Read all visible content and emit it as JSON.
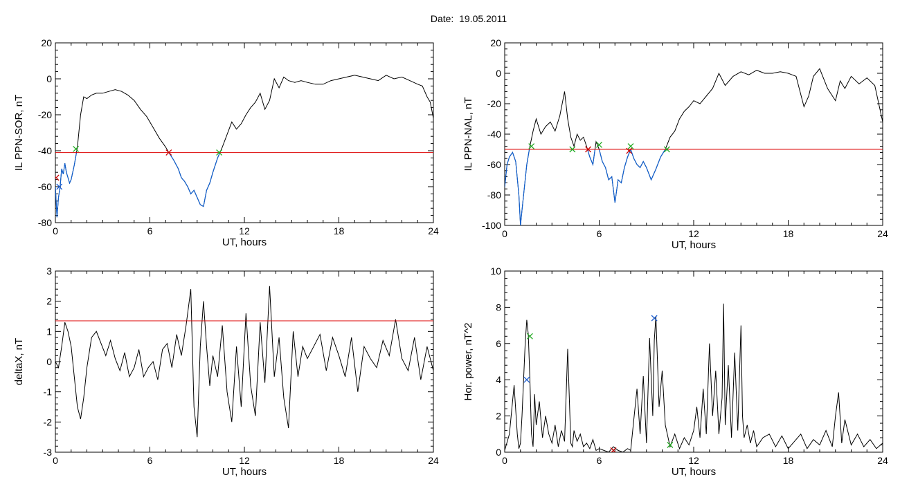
{
  "page_title": "Date:  19.05.2011",
  "chart_data": [
    {
      "id": "sor",
      "type": "line",
      "title": "",
      "xlabel": "UT, hours",
      "ylabel": "IL PPN-SOR, nT",
      "xlim": [
        0,
        24
      ],
      "ylim": [
        -80,
        20
      ],
      "xticks": [
        0,
        6,
        12,
        18,
        24
      ],
      "yticks": [
        -80,
        -60,
        -40,
        -20,
        0,
        20
      ],
      "grid": false,
      "threshold": -41,
      "threshold_color": "#dd0000",
      "line_color": "#000000",
      "below_color": "#1060d0",
      "x": [
        0,
        0.1,
        0.2,
        0.3,
        0.4,
        0.5,
        0.6,
        0.7,
        0.9,
        1.0,
        1.2,
        1.4,
        1.6,
        1.8,
        2.0,
        2.3,
        2.6,
        3.0,
        3.4,
        3.8,
        4.2,
        4.6,
        5.0,
        5.4,
        5.8,
        6.2,
        6.6,
        7.0,
        7.2,
        7.5,
        7.8,
        8.0,
        8.2,
        8.4,
        8.6,
        8.8,
        9.0,
        9.2,
        9.4,
        9.6,
        9.8,
        10.0,
        10.3,
        10.6,
        10.9,
        11.2,
        11.5,
        11.8,
        12.1,
        12.4,
        12.7,
        13.0,
        13.3,
        13.6,
        13.9,
        14.2,
        14.5,
        14.8,
        15.2,
        15.6,
        16.0,
        16.5,
        17.0,
        17.5,
        18.0,
        18.5,
        19.0,
        19.5,
        20.0,
        20.5,
        21.0,
        21.5,
        22.0,
        22.5,
        23.0,
        23.3,
        23.6,
        23.8,
        24.0
      ],
      "values": [
        -60,
        -77,
        -66,
        -60,
        -50,
        -53,
        -47,
        -52,
        -58,
        -56,
        -48,
        -38,
        -20,
        -10,
        -11,
        -9,
        -8,
        -8,
        -7,
        -6,
        -7,
        -9,
        -12,
        -17,
        -21,
        -27,
        -33,
        -38,
        -41,
        -45,
        -50,
        -55,
        -57,
        -60,
        -64,
        -62,
        -66,
        -70,
        -71,
        -62,
        -58,
        -52,
        -44,
        -38,
        -31,
        -24,
        -28,
        -25,
        -20,
        -16,
        -13,
        -8,
        -17,
        -12,
        0,
        -5,
        1,
        -1,
        -2,
        -1,
        -2,
        -3,
        -3,
        -1,
        0,
        1,
        2,
        1,
        0,
        -1,
        2,
        0,
        1,
        -1,
        -3,
        -4,
        -10,
        -13,
        -22
      ],
      "markers": [
        {
          "x": 1.3,
          "y": -39,
          "color": "#22aa22"
        },
        {
          "x": 7.2,
          "y": -41,
          "color": "#cc0000"
        },
        {
          "x": 10.4,
          "y": -41,
          "color": "#22aa22"
        },
        {
          "x": 0.05,
          "y": -55,
          "color": "#cc0000"
        },
        {
          "x": 0.25,
          "y": -60,
          "color": "#2060d0"
        }
      ]
    },
    {
      "id": "nal",
      "type": "line",
      "title": "",
      "xlabel": "UT, hours",
      "ylabel": "IL PPN-NAL, nT",
      "xlim": [
        0,
        24
      ],
      "ylim": [
        -100,
        20
      ],
      "xticks": [
        0,
        6,
        12,
        18,
        24
      ],
      "yticks": [
        -100,
        -80,
        -60,
        -40,
        -20,
        0,
        20
      ],
      "grid": false,
      "threshold": -50,
      "threshold_color": "#dd0000",
      "line_color": "#000000",
      "below_color": "#1060d0",
      "x": [
        0,
        0.15,
        0.3,
        0.5,
        0.7,
        0.9,
        1.0,
        1.1,
        1.2,
        1.4,
        1.6,
        1.8,
        2.0,
        2.3,
        2.6,
        2.9,
        3.2,
        3.5,
        3.8,
        4.0,
        4.2,
        4.4,
        4.6,
        4.8,
        5.0,
        5.2,
        5.4,
        5.6,
        5.8,
        6.0,
        6.2,
        6.4,
        6.6,
        6.8,
        7.0,
        7.2,
        7.4,
        7.6,
        7.8,
        8.0,
        8.2,
        8.4,
        8.6,
        8.8,
        9.0,
        9.3,
        9.6,
        9.9,
        10.2,
        10.5,
        10.8,
        11.1,
        11.4,
        11.7,
        12.0,
        12.4,
        12.8,
        13.2,
        13.6,
        14.0,
        14.5,
        15.0,
        15.5,
        16.0,
        16.5,
        17.0,
        17.5,
        18.0,
        18.5,
        19.0,
        19.3,
        19.6,
        20.0,
        20.5,
        21.0,
        21.3,
        21.6,
        22.0,
        22.5,
        23.0,
        23.5,
        24.0
      ],
      "values": [
        -75,
        -60,
        -55,
        -52,
        -58,
        -80,
        -100,
        -90,
        -80,
        -60,
        -48,
        -38,
        -30,
        -40,
        -35,
        -32,
        -38,
        -28,
        -12,
        -30,
        -42,
        -48,
        -40,
        -44,
        -42,
        -48,
        -55,
        -60,
        -45,
        -50,
        -58,
        -62,
        -70,
        -68,
        -85,
        -70,
        -72,
        -62,
        -55,
        -50,
        -56,
        -60,
        -62,
        -58,
        -62,
        -70,
        -63,
        -55,
        -50,
        -42,
        -38,
        -30,
        -25,
        -22,
        -18,
        -20,
        -15,
        -10,
        0,
        -8,
        -2,
        1,
        -1,
        2,
        0,
        0,
        1,
        0,
        -2,
        -22,
        -15,
        -2,
        3,
        -10,
        -18,
        -5,
        -10,
        -2,
        -7,
        -3,
        -8,
        -32
      ],
      "markers": [
        {
          "x": 1.7,
          "y": -48,
          "color": "#22aa22"
        },
        {
          "x": 4.3,
          "y": -50,
          "color": "#22aa22"
        },
        {
          "x": 5.3,
          "y": -50,
          "color": "#cc0000"
        },
        {
          "x": 6.0,
          "y": -47,
          "color": "#22aa22"
        },
        {
          "x": 7.9,
          "y": -51,
          "color": "#cc0000"
        },
        {
          "x": 8.0,
          "y": -48,
          "color": "#22aa22"
        },
        {
          "x": 10.3,
          "y": -50,
          "color": "#22aa22"
        }
      ]
    },
    {
      "id": "deltax",
      "type": "line",
      "title": "",
      "xlabel": "UT, hours",
      "ylabel": "deltaX, nT",
      "xlim": [
        0,
        24
      ],
      "ylim": [
        -3,
        3
      ],
      "xticks": [
        0,
        6,
        12,
        18,
        24
      ],
      "yticks": [
        -3,
        -2,
        -1,
        0,
        1,
        2,
        3
      ],
      "grid": false,
      "threshold": 1.35,
      "threshold_color": "#dd0000",
      "line_color": "#000000",
      "x": [
        0,
        0.2,
        0.4,
        0.6,
        0.8,
        1.0,
        1.2,
        1.4,
        1.6,
        1.8,
        2.0,
        2.3,
        2.6,
        2.9,
        3.2,
        3.5,
        3.8,
        4.1,
        4.4,
        4.7,
        5.0,
        5.3,
        5.6,
        5.9,
        6.2,
        6.5,
        6.8,
        7.1,
        7.4,
        7.7,
        8.0,
        8.3,
        8.6,
        8.8,
        9.0,
        9.2,
        9.4,
        9.6,
        9.8,
        10.0,
        10.3,
        10.6,
        10.9,
        11.2,
        11.5,
        11.8,
        12.1,
        12.4,
        12.7,
        13.0,
        13.3,
        13.6,
        13.9,
        14.2,
        14.5,
        14.8,
        15.1,
        15.4,
        15.7,
        16.0,
        16.4,
        16.8,
        17.2,
        17.6,
        18.0,
        18.4,
        18.8,
        19.2,
        19.6,
        20.0,
        20.4,
        20.8,
        21.2,
        21.6,
        22.0,
        22.4,
        22.8,
        23.2,
        23.6,
        24.0
      ],
      "values": [
        0,
        -0.2,
        0.5,
        1.3,
        1.0,
        0.5,
        -0.5,
        -1.5,
        -1.9,
        -1.2,
        -0.2,
        0.8,
        1.0,
        0.6,
        0.2,
        0.7,
        0.1,
        -0.3,
        0.3,
        -0.5,
        -0.2,
        0.4,
        -0.5,
        -0.2,
        0.0,
        -0.6,
        0.4,
        0.6,
        -0.2,
        0.9,
        0.2,
        1.2,
        2.4,
        -1.5,
        -2.5,
        0.5,
        2.0,
        0.5,
        -0.8,
        0.2,
        -0.5,
        1.2,
        -1.0,
        -2.0,
        0.5,
        -1.5,
        1.6,
        -0.8,
        -1.8,
        1.3,
        -0.7,
        2.5,
        -0.5,
        0.8,
        -1.2,
        -2.2,
        1.0,
        -0.5,
        0.5,
        0.1,
        0.5,
        0.9,
        -0.3,
        0.8,
        0.2,
        -0.5,
        0.8,
        -1.0,
        0.5,
        0.1,
        -0.2,
        0.7,
        0.2,
        1.4,
        0.1,
        -0.3,
        0.8,
        -0.6,
        0.5,
        -0.3
      ],
      "markers": []
    },
    {
      "id": "power",
      "type": "line",
      "title": "",
      "xlabel": "UT, hours",
      "ylabel": "Hor. power, nT^2",
      "xlim": [
        0,
        24
      ],
      "ylim": [
        0,
        10
      ],
      "xticks": [
        0,
        6,
        12,
        18,
        24
      ],
      "yticks": [
        0,
        2,
        4,
        6,
        8,
        10
      ],
      "grid": false,
      "threshold": null,
      "line_color": "#000000",
      "x": [
        0,
        0.3,
        0.6,
        0.8,
        0.9,
        1.0,
        1.1,
        1.2,
        1.3,
        1.4,
        1.5,
        1.6,
        1.7,
        1.8,
        1.9,
        2.0,
        2.2,
        2.4,
        2.6,
        2.8,
        3.0,
        3.2,
        3.4,
        3.6,
        3.8,
        4.0,
        4.2,
        4.3,
        4.4,
        4.6,
        4.8,
        5.0,
        5.2,
        5.4,
        5.6,
        5.8,
        6.0,
        6.3,
        6.6,
        6.9,
        7.2,
        7.5,
        7.8,
        8.0,
        8.2,
        8.4,
        8.6,
        8.8,
        9.0,
        9.2,
        9.4,
        9.5,
        9.6,
        9.8,
        10.0,
        10.2,
        10.5,
        10.8,
        11.1,
        11.4,
        11.7,
        12.0,
        12.2,
        12.4,
        12.6,
        12.8,
        13.0,
        13.2,
        13.4,
        13.6,
        13.8,
        13.9,
        14.0,
        14.2,
        14.4,
        14.6,
        14.8,
        15.0,
        15.1,
        15.2,
        15.4,
        15.6,
        15.8,
        16.0,
        16.4,
        16.8,
        17.2,
        17.6,
        18.0,
        18.4,
        18.8,
        19.2,
        19.6,
        20.0,
        20.4,
        20.8,
        21.0,
        21.2,
        21.4,
        21.6,
        22.0,
        22.4,
        22.8,
        23.2,
        23.6,
        24.0
      ],
      "values": [
        0.1,
        1.0,
        3.7,
        1.0,
        0.2,
        0.5,
        2.0,
        4.0,
        6.0,
        7.3,
        6.5,
        4.0,
        1.0,
        0.3,
        3.2,
        1.5,
        2.8,
        0.8,
        2.0,
        1.0,
        0.5,
        1.5,
        0.3,
        1.2,
        0.6,
        5.7,
        0.5,
        0.3,
        1.2,
        0.6,
        1.0,
        0.3,
        0.5,
        0.2,
        0.7,
        0.1,
        0.2,
        0.1,
        0.0,
        0.3,
        0.1,
        0.0,
        0.2,
        0.1,
        1.8,
        3.5,
        1.0,
        4.2,
        0.5,
        6.3,
        2.0,
        6.2,
        7.5,
        2.5,
        4.5,
        1.5,
        0.3,
        1.0,
        0.2,
        0.8,
        0.4,
        1.2,
        2.5,
        0.8,
        3.5,
        1.0,
        6.0,
        2.0,
        4.5,
        1.0,
        3.0,
        8.2,
        1.5,
        4.8,
        0.8,
        5.5,
        1.2,
        7.0,
        2.0,
        0.8,
        1.5,
        0.5,
        1.2,
        0.3,
        0.8,
        1.0,
        0.3,
        0.9,
        0.2,
        0.6,
        1.0,
        0.2,
        0.7,
        0.4,
        1.2,
        0.3,
        2.0,
        3.3,
        0.5,
        1.8,
        0.4,
        1.0,
        0.3,
        0.7,
        0.2,
        0.5
      ],
      "markers": [
        {
          "x": 1.4,
          "y": 4.0,
          "color": "#2060d0"
        },
        {
          "x": 1.6,
          "y": 6.4,
          "color": "#22aa22"
        },
        {
          "x": 9.5,
          "y": 7.4,
          "color": "#2060d0"
        },
        {
          "x": 6.9,
          "y": 0.1,
          "color": "#cc0000"
        },
        {
          "x": 10.5,
          "y": 0.4,
          "color": "#22aa22"
        }
      ]
    }
  ]
}
